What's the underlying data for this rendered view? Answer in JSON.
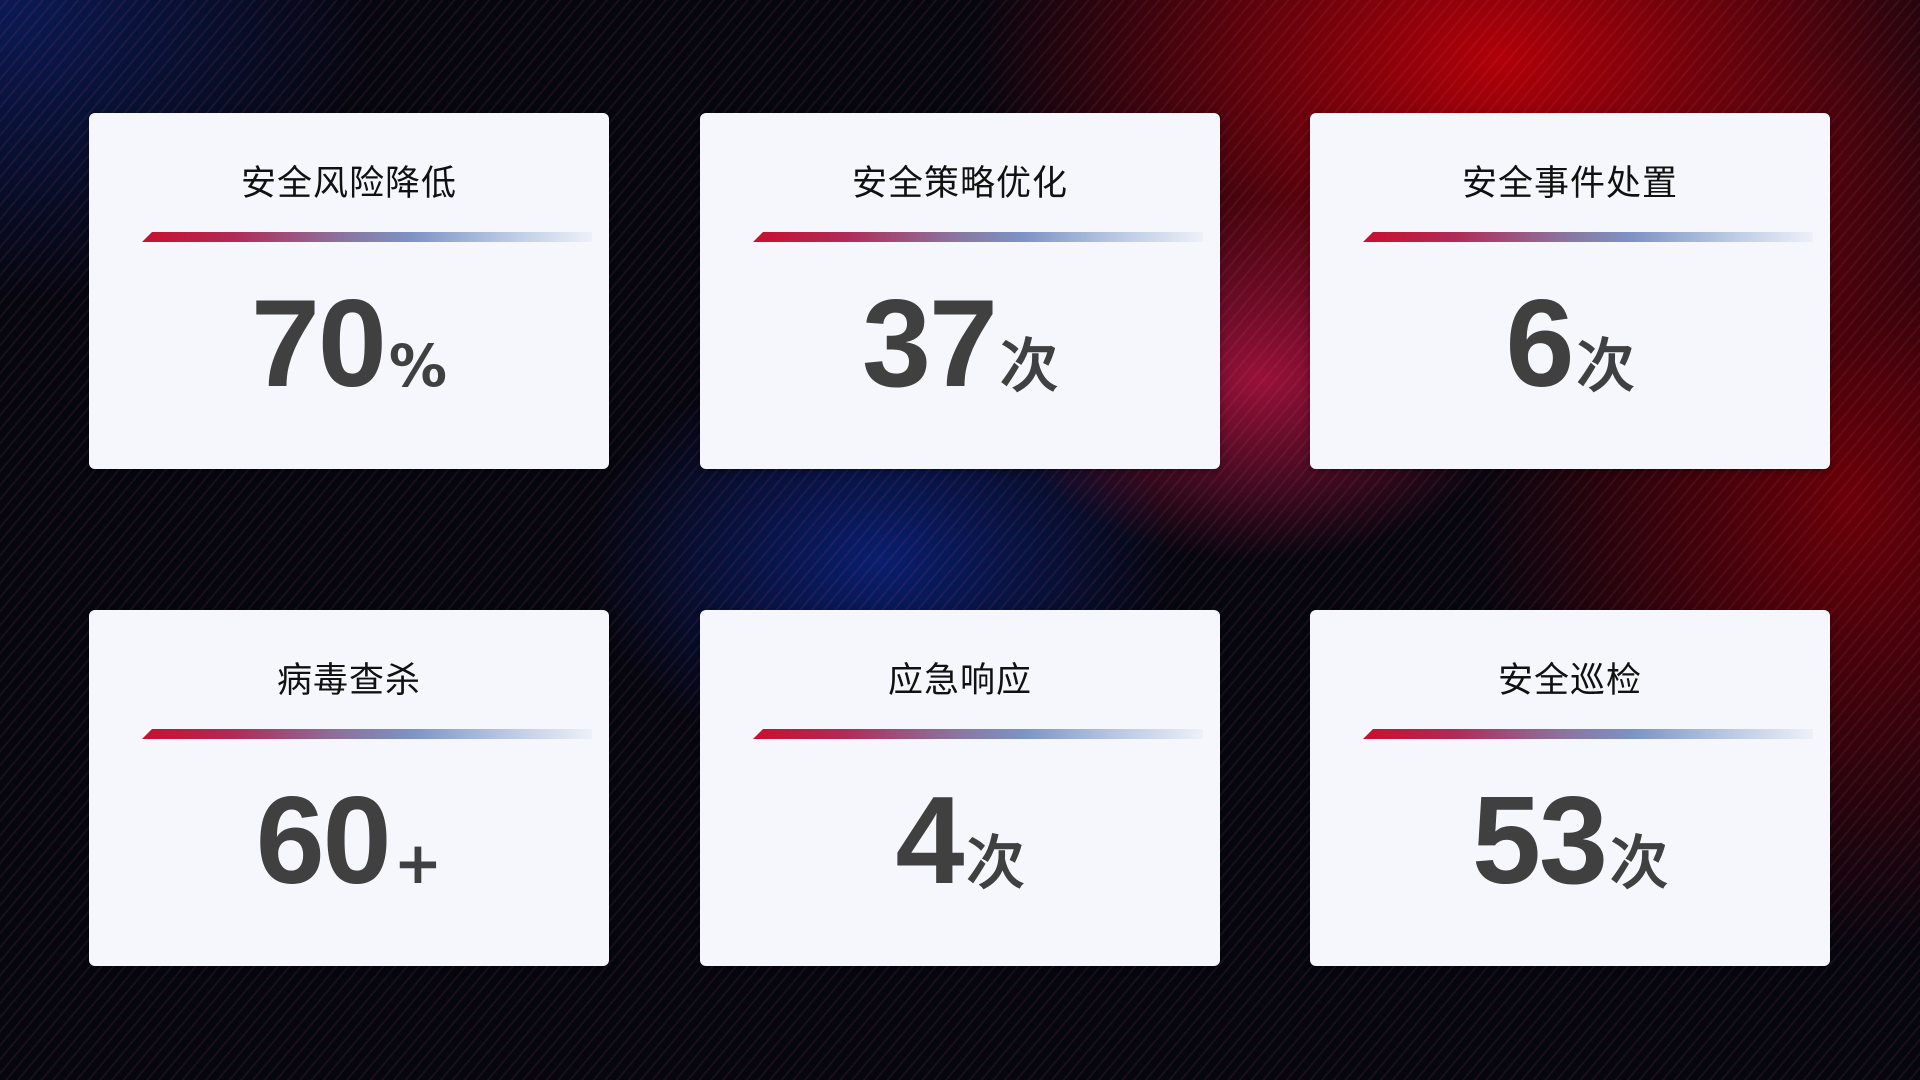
{
  "cards": [
    {
      "title": "安全风险降低",
      "value": "70",
      "unit": "%"
    },
    {
      "title": "安全策略优化",
      "value": "37",
      "unit": "次"
    },
    {
      "title": "安全事件处置",
      "value": "6",
      "unit": "次"
    },
    {
      "title": "病毒查杀",
      "value": "60",
      "unit": "+"
    },
    {
      "title": "应急响应",
      "value": "4",
      "unit": "次"
    },
    {
      "title": "安全巡检",
      "value": "53",
      "unit": "次"
    }
  ],
  "colors": {
    "accent_red": "#c8102e",
    "accent_blue": "#7d93c4",
    "card_bg": "#f5f7fc",
    "value_text": "#404040"
  }
}
